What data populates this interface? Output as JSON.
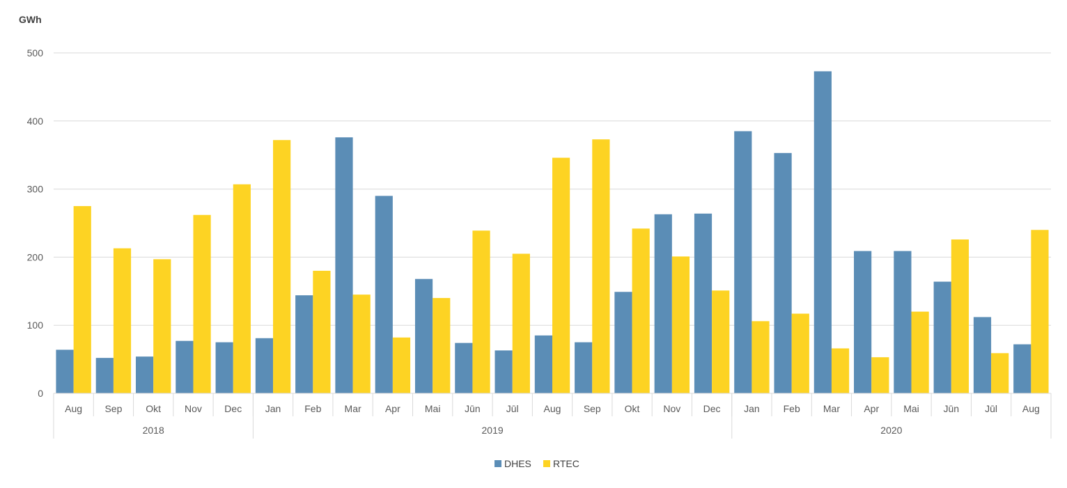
{
  "chart_data": {
    "type": "bar",
    "y_unit": "GWh",
    "ylim": [
      0,
      500
    ],
    "yticks": [
      0,
      100,
      200,
      300,
      400,
      500
    ],
    "grid": true,
    "legend_position": "bottom-center",
    "categories": [
      "Aug",
      "Sep",
      "Okt",
      "Nov",
      "Dec",
      "Jan",
      "Feb",
      "Mar",
      "Apr",
      "Mai",
      "Jūn",
      "Jūl",
      "Aug",
      "Sep",
      "Okt",
      "Nov",
      "Dec",
      "Jan",
      "Feb",
      "Mar",
      "Apr",
      "Mai",
      "Jūn",
      "Jūl",
      "Aug"
    ],
    "year_groups": [
      {
        "label": "2018",
        "count": 5
      },
      {
        "label": "2019",
        "count": 12
      },
      {
        "label": "2020",
        "count": 8
      }
    ],
    "series": [
      {
        "name": "DHES",
        "color": "#5B8DB6",
        "values": [
          64,
          52,
          54,
          77,
          75,
          81,
          144,
          376,
          290,
          168,
          74,
          63,
          85,
          75,
          149,
          263,
          264,
          385,
          353,
          473,
          209,
          209,
          164,
          112,
          72
        ]
      },
      {
        "name": "RTEC",
        "color": "#FDD323",
        "values": [
          275,
          213,
          197,
          262,
          307,
          372,
          180,
          145,
          82,
          140,
          239,
          205,
          346,
          373,
          242,
          201,
          151,
          106,
          117,
          66,
          53,
          120,
          226,
          59,
          240
        ]
      }
    ]
  }
}
